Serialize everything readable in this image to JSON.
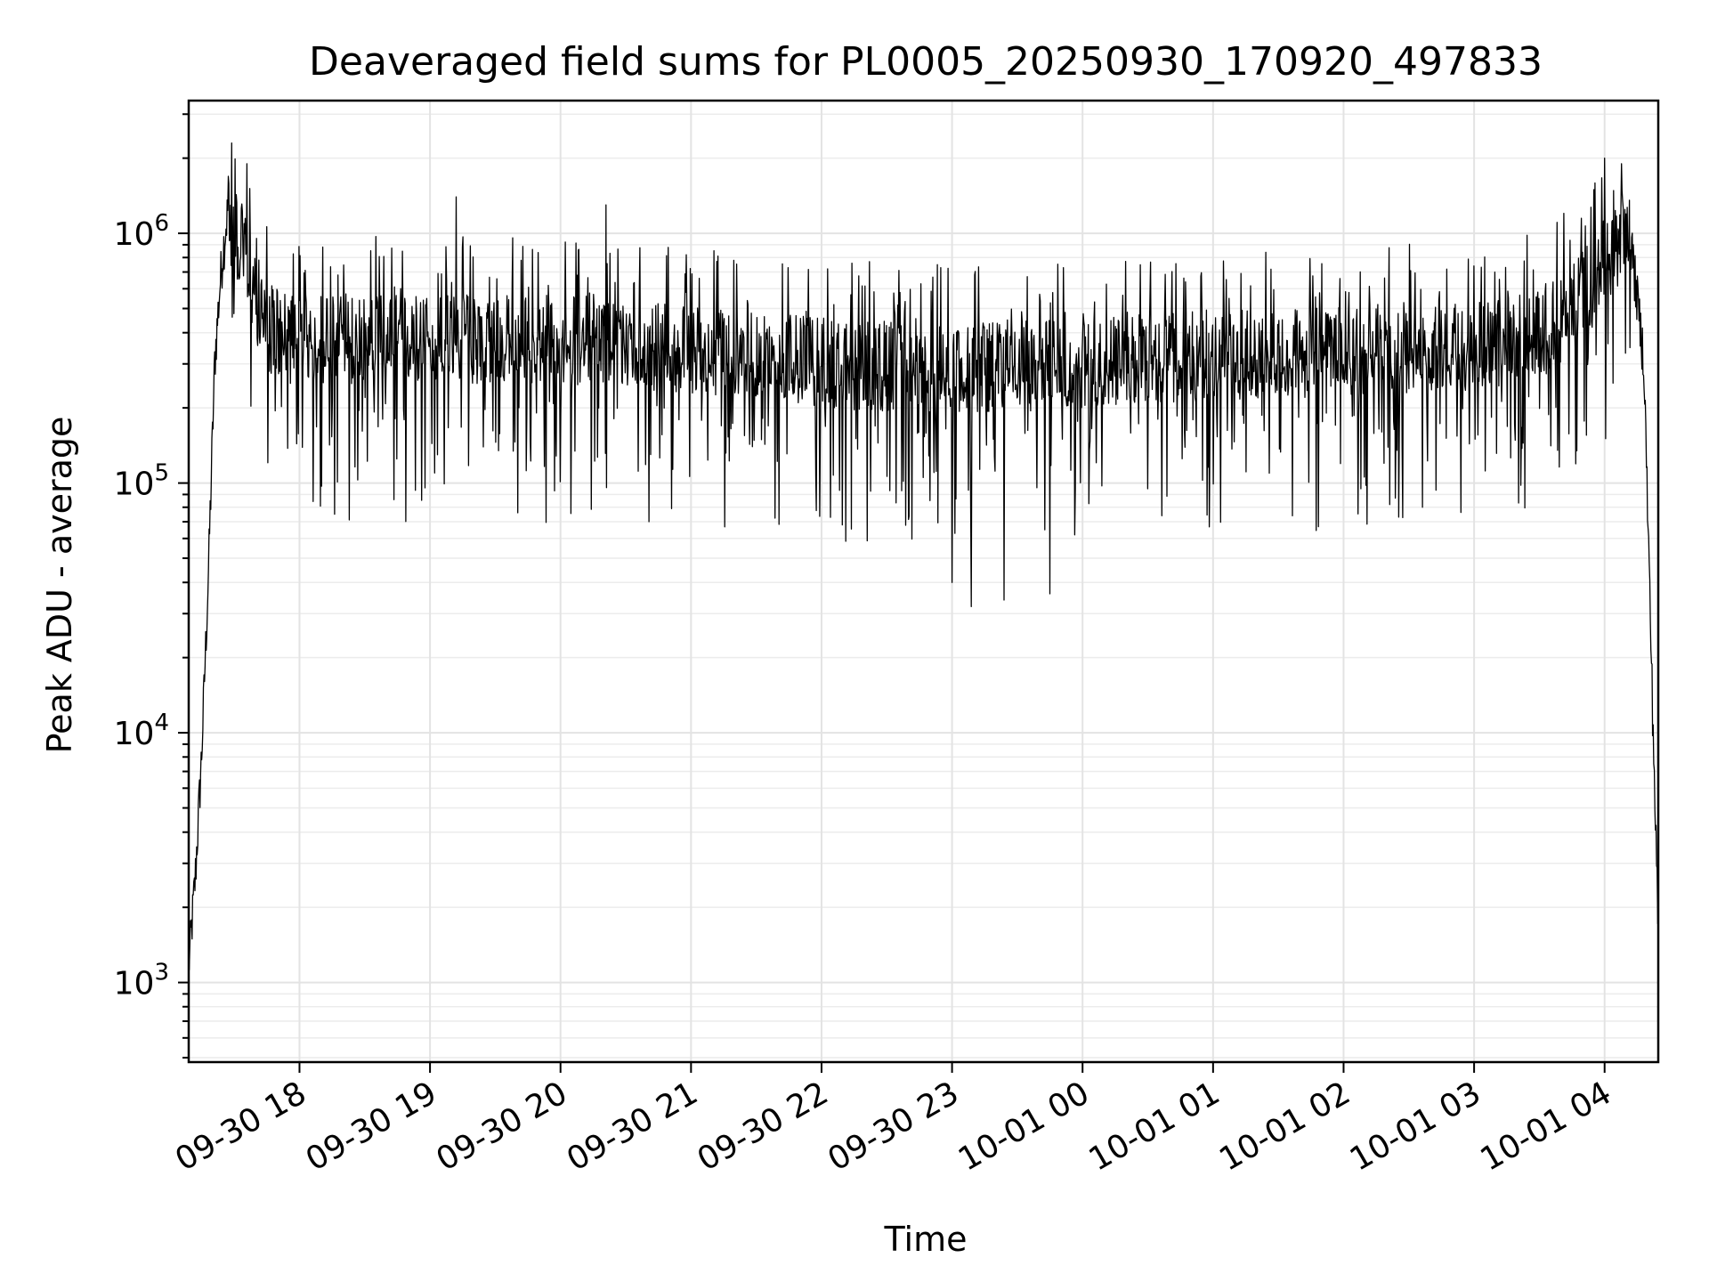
{
  "chart_data": {
    "type": "line",
    "title": "Deaveraged field sums for PL0005_20250930_170920_497833",
    "xlabel": "Time",
    "ylabel": "Peak ADU - average",
    "yscale": "log",
    "ylim": [
      480,
      3400000
    ],
    "xlim_hours_from_0930_1709": [
      0,
      11.26
    ],
    "grid": true,
    "x_tick_labels": [
      "09-30 18",
      "09-30 19",
      "09-30 20",
      "09-30 21",
      "09-30 22",
      "09-30 23",
      "10-01 00",
      "10-01 01",
      "10-01 02",
      "10-01 03",
      "10-01 04"
    ],
    "x_tick_hours": [
      0.8489,
      1.8489,
      2.8489,
      3.8489,
      4.8489,
      5.8489,
      6.8489,
      7.8489,
      8.8489,
      9.8489,
      10.8489
    ],
    "y_tick_base": "10",
    "y_tick_exponents": [
      "3",
      "4",
      "5",
      "6"
    ],
    "y_tick_values": [
      1000,
      10000,
      100000,
      1000000
    ],
    "series": [
      {
        "name": "Deaveraged field sum",
        "color": "#000000",
        "baseline": 350000,
        "profile_hours": [
          0,
          0.05,
          0.1,
          0.15,
          0.2,
          0.25,
          0.3,
          0.4,
          0.5,
          0.6,
          0.8,
          3.0,
          5.0,
          6.0,
          8.0,
          10.0,
          10.4,
          10.6,
          10.8,
          10.95,
          11.05,
          11.15,
          11.26
        ],
        "profile_values": [
          1100,
          2500,
          8000,
          40000,
          300000,
          700000,
          1200000,
          900000,
          600000,
          420000,
          380000,
          380000,
          300000,
          290000,
          330000,
          360000,
          420000,
          500000,
          700000,
          950000,
          900000,
          300000,
          1500
        ],
        "spike_values": [
          {
            "hour": 0.33,
            "value": 2300000
          },
          {
            "hour": 0.45,
            "value": 1900000
          },
          {
            "hour": 1.12,
            "value": 75000
          },
          {
            "hour": 2.05,
            "value": 1400000
          },
          {
            "hour": 3.2,
            "value": 1300000
          },
          {
            "hour": 5.85,
            "value": 40000
          },
          {
            "hour": 6.0,
            "value": 32000
          },
          {
            "hour": 6.25,
            "value": 34000
          },
          {
            "hour": 6.6,
            "value": 36000
          },
          {
            "hour": 10.85,
            "value": 2000000
          },
          {
            "hour": 10.98,
            "value": 1900000
          }
        ],
        "noise_low_factor": 0.18,
        "noise_high_factor": 2.6,
        "n_points": 2600
      }
    ]
  }
}
